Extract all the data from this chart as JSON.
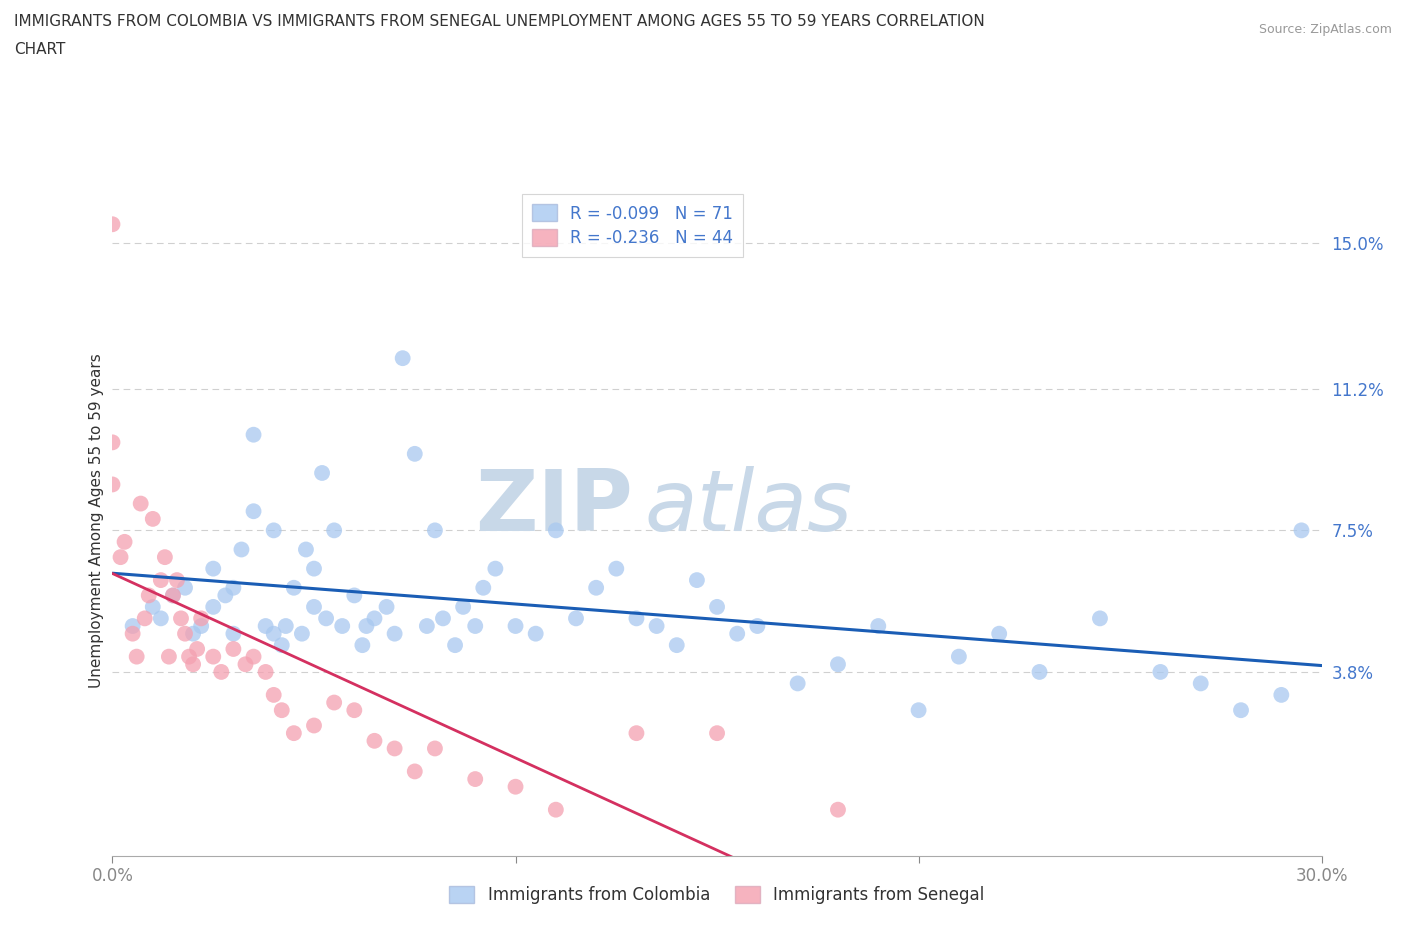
{
  "title_line1": "IMMIGRANTS FROM COLOMBIA VS IMMIGRANTS FROM SENEGAL UNEMPLOYMENT AMONG AGES 55 TO 59 YEARS CORRELATION",
  "title_line2": "CHART",
  "source": "Source: ZipAtlas.com",
  "ylabel": "Unemployment Among Ages 55 to 59 years",
  "xlim": [
    0.0,
    0.3
  ],
  "ylim": [
    -0.01,
    0.165
  ],
  "ytick_values": [
    0.038,
    0.075,
    0.112,
    0.15
  ],
  "ytick_labels": [
    "3.8%",
    "7.5%",
    "11.2%",
    "15.0%"
  ],
  "colombia_color": "#a8c8f0",
  "senegal_color": "#f4a0b0",
  "colombia_line_color": "#1a5db5",
  "senegal_line_color": "#d43060",
  "senegal_dashed_color": "#e0a0b0",
  "R_colombia": -0.099,
  "N_colombia": 71,
  "R_senegal": -0.236,
  "N_senegal": 44,
  "colombia_x": [
    0.005,
    0.01,
    0.012,
    0.015,
    0.018,
    0.02,
    0.022,
    0.025,
    0.025,
    0.028,
    0.03,
    0.03,
    0.032,
    0.035,
    0.035,
    0.038,
    0.04,
    0.04,
    0.042,
    0.043,
    0.045,
    0.047,
    0.048,
    0.05,
    0.05,
    0.052,
    0.053,
    0.055,
    0.057,
    0.06,
    0.062,
    0.063,
    0.065,
    0.068,
    0.07,
    0.072,
    0.075,
    0.078,
    0.08,
    0.082,
    0.085,
    0.087,
    0.09,
    0.092,
    0.095,
    0.1,
    0.105,
    0.11,
    0.115,
    0.12,
    0.125,
    0.13,
    0.135,
    0.14,
    0.145,
    0.15,
    0.155,
    0.16,
    0.17,
    0.18,
    0.19,
    0.2,
    0.21,
    0.22,
    0.23,
    0.245,
    0.26,
    0.27,
    0.28,
    0.29,
    0.295
  ],
  "colombia_y": [
    0.05,
    0.055,
    0.052,
    0.058,
    0.06,
    0.048,
    0.05,
    0.065,
    0.055,
    0.058,
    0.06,
    0.048,
    0.07,
    0.08,
    0.1,
    0.05,
    0.048,
    0.075,
    0.045,
    0.05,
    0.06,
    0.048,
    0.07,
    0.055,
    0.065,
    0.09,
    0.052,
    0.075,
    0.05,
    0.058,
    0.045,
    0.05,
    0.052,
    0.055,
    0.048,
    0.12,
    0.095,
    0.05,
    0.075,
    0.052,
    0.045,
    0.055,
    0.05,
    0.06,
    0.065,
    0.05,
    0.048,
    0.075,
    0.052,
    0.06,
    0.065,
    0.052,
    0.05,
    0.045,
    0.062,
    0.055,
    0.048,
    0.05,
    0.035,
    0.04,
    0.05,
    0.028,
    0.042,
    0.048,
    0.038,
    0.052,
    0.038,
    0.035,
    0.028,
    0.032,
    0.075
  ],
  "senegal_x": [
    0.0,
    0.0,
    0.0,
    0.002,
    0.003,
    0.005,
    0.006,
    0.007,
    0.008,
    0.009,
    0.01,
    0.012,
    0.013,
    0.014,
    0.015,
    0.016,
    0.017,
    0.018,
    0.019,
    0.02,
    0.021,
    0.022,
    0.025,
    0.027,
    0.03,
    0.033,
    0.035,
    0.038,
    0.04,
    0.042,
    0.045,
    0.05,
    0.055,
    0.06,
    0.065,
    0.07,
    0.075,
    0.08,
    0.09,
    0.1,
    0.11,
    0.13,
    0.15,
    0.18
  ],
  "senegal_y": [
    0.155,
    0.098,
    0.087,
    0.068,
    0.072,
    0.048,
    0.042,
    0.082,
    0.052,
    0.058,
    0.078,
    0.062,
    0.068,
    0.042,
    0.058,
    0.062,
    0.052,
    0.048,
    0.042,
    0.04,
    0.044,
    0.052,
    0.042,
    0.038,
    0.044,
    0.04,
    0.042,
    0.038,
    0.032,
    0.028,
    0.022,
    0.024,
    0.03,
    0.028,
    0.02,
    0.018,
    0.012,
    0.018,
    0.01,
    0.008,
    0.002,
    0.022,
    0.022,
    0.002
  ],
  "background_color": "#ffffff",
  "grid_color": "#d0d0d0",
  "watermark_zip_color": "#c8d8e8",
  "watermark_atlas_color": "#c8d8e8"
}
